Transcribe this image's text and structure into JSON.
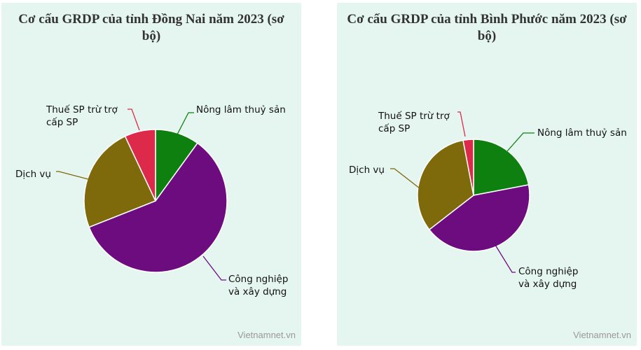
{
  "chart_data": [
    {
      "type": "pie",
      "title": "Cơ cấu GRDP của tỉnh Đồng Nai năm 2023 (sơ bộ)",
      "credit": "Vietnamnet.vn",
      "slices": [
        {
          "name": "Nông lâm thuỷ sản",
          "lines": [
            "Nông lâm thuỷ sản"
          ],
          "value": 10.0,
          "color": "#0e8010"
        },
        {
          "name": "Công nghiệp và xây dựng",
          "lines": [
            "Công nghiệp",
            "và xây dựng"
          ],
          "value": 59.0,
          "color": "#6d0c7f"
        },
        {
          "name": "Dịch vụ",
          "lines": [
            "Dịch vụ"
          ],
          "value": 24.0,
          "color": "#7e690b"
        },
        {
          "name": "Thuế SP trừ trợ cấp SP",
          "lines": [
            "Thuế SP trừ trợ",
            "cấp SP"
          ],
          "value": 7.0,
          "color": "#dd2a4b"
        }
      ]
    },
    {
      "type": "pie",
      "title": "Cơ cấu GRDP của tỉnh Bình Phước năm 2023 (sơ bộ)",
      "credit": "Vietnamnet.vn",
      "slices": [
        {
          "name": "Nông lâm thuỷ sản",
          "lines": [
            "Nông lâm thuỷ sản"
          ],
          "value": 22.0,
          "color": "#0e8010"
        },
        {
          "name": "Công nghiệp và xây dựng",
          "lines": [
            "Công nghiệp",
            "và xây dựng"
          ],
          "value": 42.5,
          "color": "#6d0c7f"
        },
        {
          "name": "Dịch vụ",
          "lines": [
            "Dịch vụ"
          ],
          "value": 32.5,
          "color": "#7e690b"
        },
        {
          "name": "Thuế SP trừ trợ cấp SP",
          "lines": [
            "Thuế SP trừ trợ",
            "cấp SP"
          ],
          "value": 3.0,
          "color": "#dd2a4b"
        }
      ]
    }
  ]
}
